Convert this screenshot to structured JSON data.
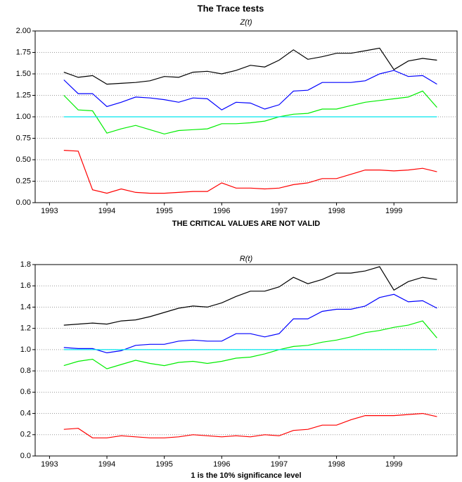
{
  "chart_data": [
    {
      "type": "line",
      "title": "The Trace tests",
      "subtitle": "Z(t)",
      "xlabel": "THE CRITICAL VALUES ARE NOT VALID",
      "x": [
        1993.25,
        1993.5,
        1993.75,
        1994,
        1994.25,
        1994.5,
        1994.75,
        1995,
        1995.25,
        1995.5,
        1995.75,
        1996,
        1996.25,
        1996.5,
        1996.75,
        1997,
        1997.25,
        1997.5,
        1997.75,
        1998,
        1998.25,
        1998.5,
        1998.75,
        1999,
        1999.25,
        1999.5,
        1999.75
      ],
      "xlim": [
        1992.75,
        2000.1
      ],
      "xticks": [
        1993,
        1994,
        1995,
        1996,
        1997,
        1998,
        1999
      ],
      "ylim": [
        0,
        2
      ],
      "yticks": [
        {
          "value": 0,
          "label": "0.00"
        },
        0.25,
        {
          "value": 0.5,
          "label": "0.50"
        },
        0.75,
        {
          "value": 1,
          "label": "1.00"
        },
        1.25,
        {
          "value": 1.5,
          "label": "1.50"
        },
        1.75,
        {
          "value": 2,
          "label": "2.00"
        }
      ],
      "grid": true,
      "series": [
        {
          "color": "#000000",
          "values": [
            1.52,
            1.46,
            1.48,
            1.38,
            1.39,
            1.4,
            1.42,
            1.47,
            1.46,
            1.52,
            1.53,
            1.5,
            1.54,
            1.6,
            1.58,
            1.66,
            1.78,
            1.67,
            1.7,
            1.74,
            1.74,
            1.77,
            1.8,
            1.55,
            1.65,
            1.68,
            1.66
          ]
        },
        {
          "color": "#0000ff",
          "values": [
            1.43,
            1.27,
            1.27,
            1.12,
            1.17,
            1.23,
            1.22,
            1.2,
            1.17,
            1.22,
            1.21,
            1.08,
            1.17,
            1.16,
            1.09,
            1.14,
            1.3,
            1.31,
            1.4,
            1.4,
            1.4,
            1.42,
            1.5,
            1.54,
            1.47,
            1.48,
            1.38
          ]
        },
        {
          "color": "#00ee00",
          "values": [
            1.25,
            1.08,
            1.07,
            0.81,
            0.86,
            0.9,
            0.85,
            0.8,
            0.84,
            0.85,
            0.86,
            0.92,
            0.92,
            0.93,
            0.95,
            1.0,
            1.03,
            1.04,
            1.09,
            1.09,
            1.13,
            1.17,
            1.19,
            1.21,
            1.23,
            1.3,
            1.11
          ]
        },
        {
          "color": "#ff0000",
          "values": [
            0.61,
            0.6,
            0.15,
            0.11,
            0.16,
            0.12,
            0.11,
            0.11,
            0.12,
            0.13,
            0.13,
            0.23,
            0.17,
            0.17,
            0.16,
            0.17,
            0.21,
            0.23,
            0.28,
            0.28,
            0.33,
            0.38,
            0.38,
            0.37,
            0.38,
            0.4,
            0.36
          ]
        },
        {
          "color": "#00e5ee",
          "values": [
            1,
            1,
            1,
            1,
            1,
            1,
            1,
            1,
            1,
            1,
            1,
            1,
            1,
            1,
            1,
            1,
            1,
            1,
            1,
            1,
            1,
            1,
            1,
            1,
            1,
            1,
            1
          ]
        }
      ]
    },
    {
      "type": "line",
      "subtitle": "R(t)",
      "xlabel": "1 is the 10% significance level",
      "x": [
        1993.25,
        1993.5,
        1993.75,
        1994,
        1994.25,
        1994.5,
        1994.75,
        1995,
        1995.25,
        1995.5,
        1995.75,
        1996,
        1996.25,
        1996.5,
        1996.75,
        1997,
        1997.25,
        1997.5,
        1997.75,
        1998,
        1998.25,
        1998.5,
        1998.75,
        1999,
        1999.25,
        1999.5,
        1999.75
      ],
      "xlim": [
        1992.75,
        2000.1
      ],
      "xticks": [
        1993,
        1994,
        1995,
        1996,
        1997,
        1998,
        1999
      ],
      "ylim": [
        0,
        1.8
      ],
      "yticks": [
        {
          "value": 0,
          "label": "0.0"
        },
        0.2,
        0.4,
        0.6,
        0.8,
        {
          "value": 1,
          "label": "1.0"
        },
        1.2,
        1.4,
        1.6,
        1.8
      ],
      "grid": true,
      "series": [
        {
          "color": "#000000",
          "values": [
            1.23,
            1.24,
            1.25,
            1.24,
            1.27,
            1.28,
            1.31,
            1.35,
            1.39,
            1.41,
            1.4,
            1.44,
            1.5,
            1.55,
            1.55,
            1.59,
            1.68,
            1.62,
            1.66,
            1.72,
            1.72,
            1.74,
            1.78,
            1.56,
            1.64,
            1.68,
            1.66
          ]
        },
        {
          "color": "#0000ff",
          "values": [
            1.02,
            1.01,
            1.01,
            0.97,
            0.99,
            1.04,
            1.05,
            1.05,
            1.08,
            1.09,
            1.08,
            1.08,
            1.15,
            1.15,
            1.12,
            1.15,
            1.29,
            1.29,
            1.36,
            1.38,
            1.38,
            1.41,
            1.49,
            1.52,
            1.45,
            1.46,
            1.39
          ]
        },
        {
          "color": "#00ee00",
          "values": [
            0.85,
            0.89,
            0.91,
            0.82,
            0.86,
            0.9,
            0.87,
            0.85,
            0.88,
            0.89,
            0.87,
            0.89,
            0.92,
            0.93,
            0.96,
            1.0,
            1.03,
            1.04,
            1.07,
            1.09,
            1.12,
            1.16,
            1.18,
            1.21,
            1.23,
            1.27,
            1.11
          ]
        },
        {
          "color": "#ff0000",
          "values": [
            0.25,
            0.26,
            0.17,
            0.17,
            0.19,
            0.18,
            0.17,
            0.17,
            0.18,
            0.2,
            0.19,
            0.18,
            0.19,
            0.18,
            0.2,
            0.19,
            0.24,
            0.25,
            0.29,
            0.29,
            0.34,
            0.38,
            0.38,
            0.38,
            0.39,
            0.4,
            0.37
          ]
        },
        {
          "color": "#00e5ee",
          "values": [
            1,
            1,
            1,
            1,
            1,
            1,
            1,
            1,
            1,
            1,
            1,
            1,
            1,
            1,
            1,
            1,
            1,
            1,
            1,
            1,
            1,
            1,
            1,
            1,
            1,
            1,
            1
          ]
        }
      ]
    }
  ]
}
